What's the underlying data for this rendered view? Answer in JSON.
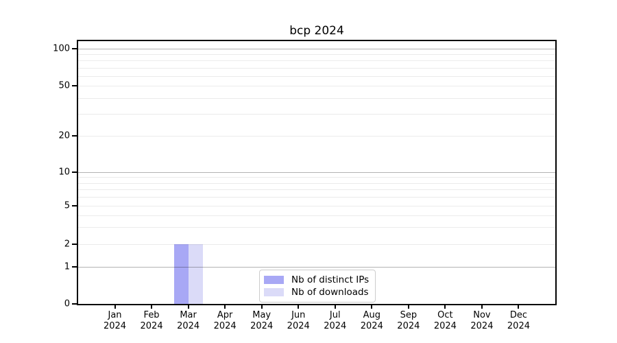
{
  "chart_data": {
    "type": "bar",
    "title": "bcp 2024",
    "categories": [
      "Jan 2024",
      "Feb 2024",
      "Mar 2024",
      "Apr 2024",
      "May 2024",
      "Jun 2024",
      "Jul 2024",
      "Aug 2024",
      "Sep 2024",
      "Oct 2024",
      "Nov 2024",
      "Dec 2024"
    ],
    "series": [
      {
        "name": "Nb of distinct IPs",
        "color": "#a8a8f5",
        "values": [
          0,
          0,
          2,
          0,
          0,
          0,
          0,
          0,
          0,
          0,
          0,
          0
        ]
      },
      {
        "name": "Nb of downloads",
        "color": "#dbdbf8",
        "values": [
          0,
          0,
          2,
          0,
          0,
          0,
          0,
          0,
          0,
          0,
          0,
          0
        ]
      }
    ],
    "yticks": [
      0,
      1,
      2,
      5,
      10,
      20,
      50,
      100
    ],
    "ylim": [
      0,
      110
    ],
    "yscale": "log-like (0 baseline, log above 1)",
    "xlabel": "",
    "ylabel": "",
    "grid": true,
    "legend": {
      "position": "lower center inside plot",
      "entries": [
        "Nb of distinct IPs",
        "Nb of downloads"
      ]
    }
  },
  "colors": {
    "bar_distinct_ips": "#a8a8f5",
    "bar_downloads": "#dbdbf8",
    "gridline_major": "#b3b3b3",
    "gridline_minor": "#ebebeb",
    "axis": "#000000",
    "legend_border": "#cccccc",
    "background": "#ffffff"
  }
}
